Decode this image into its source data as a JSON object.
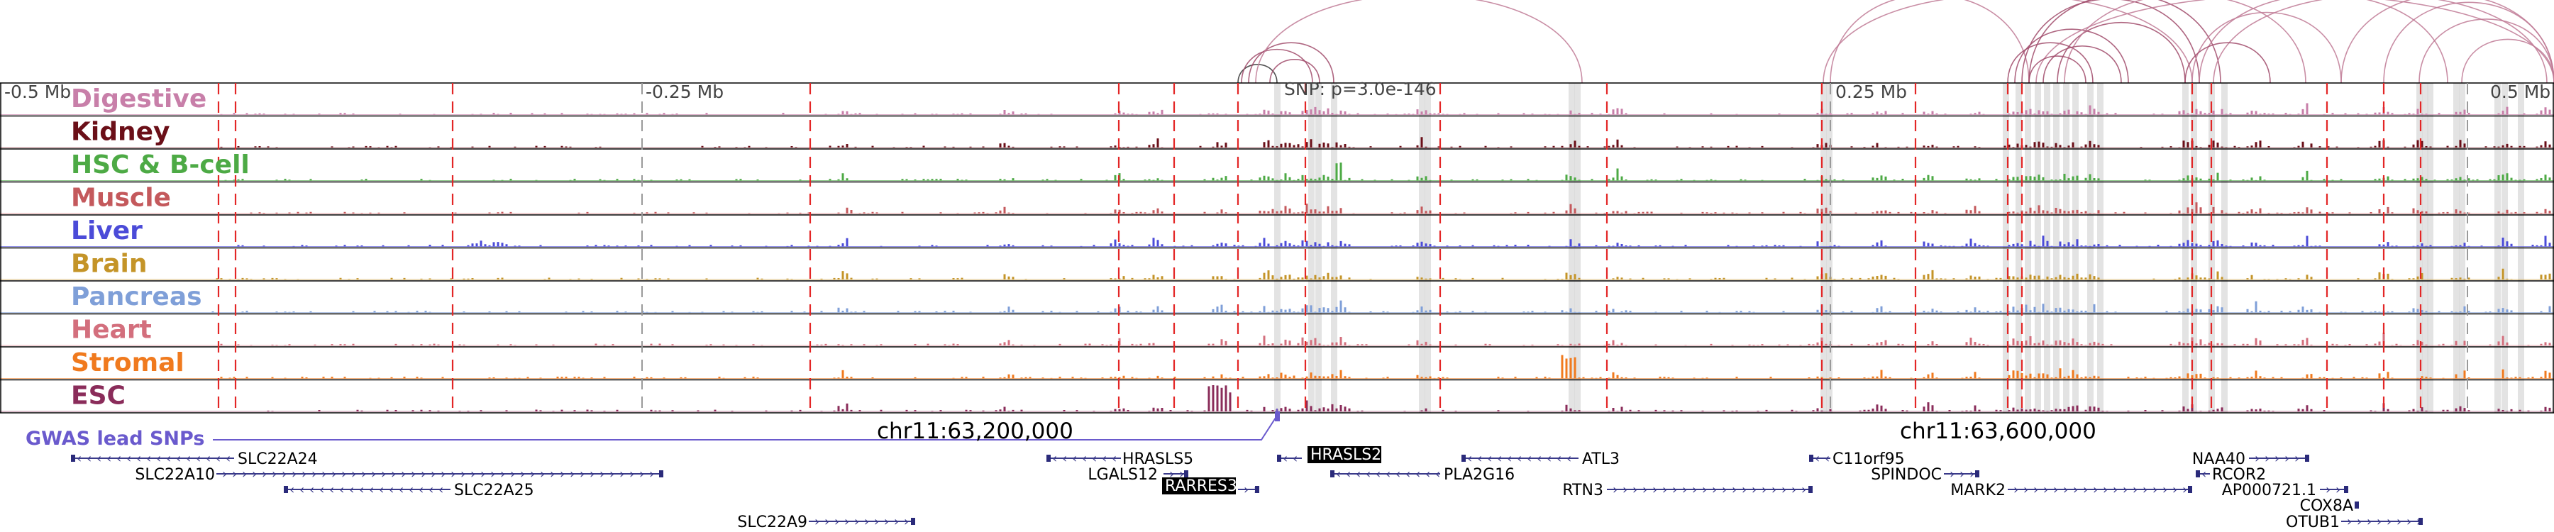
{
  "scale_bar": {
    "left_label": "-0.5 Mb",
    "mid_left_label": "-0.25 Mb",
    "mid_right_label": "0.25 Mb",
    "right_label": "0.5 Mb"
  },
  "snp_label": "SNP: p=3.0e-146",
  "gwas_label": "GWAS lead SNPs",
  "gwas_color": "#6a5acd",
  "coordinates": [
    "chr11:63,200,000",
    "chr11:63,600,000"
  ],
  "tracks": [
    {
      "name": "Digestive",
      "color": "#c87fa9"
    },
    {
      "name": "Kidney",
      "color": "#6b0f18"
    },
    {
      "name": "HSC & B-cell",
      "color": "#4daa45"
    },
    {
      "name": "Muscle",
      "color": "#c4595c"
    },
    {
      "name": "Liver",
      "color": "#4b4bd8"
    },
    {
      "name": "Brain",
      "color": "#c49428"
    },
    {
      "name": "Pancreas",
      "color": "#7f9fd8"
    },
    {
      "name": "Heart",
      "color": "#d36f7d"
    },
    {
      "name": "Stromal",
      "color": "#f07a1e"
    },
    {
      "name": "ESC",
      "color": "#8a2c5a"
    }
  ],
  "genes": [
    {
      "name": "SLC22A24",
      "highlight": false
    },
    {
      "name": "SLC22A10",
      "highlight": false
    },
    {
      "name": "SLC22A25",
      "highlight": false
    },
    {
      "name": "SLC22A9",
      "highlight": false
    },
    {
      "name": "HRASLS5",
      "highlight": false
    },
    {
      "name": "LGALS12",
      "highlight": false
    },
    {
      "name": "RARRES3",
      "highlight": true
    },
    {
      "name": "HRASLS2",
      "highlight": true
    },
    {
      "name": "PLA2G16",
      "highlight": false
    },
    {
      "name": "ATL3",
      "highlight": false
    },
    {
      "name": "RTN3",
      "highlight": false
    },
    {
      "name": "C11orf95",
      "highlight": false
    },
    {
      "name": "SPINDOC",
      "highlight": false
    },
    {
      "name": "MARK2",
      "highlight": false
    },
    {
      "name": "NAA40",
      "highlight": false
    },
    {
      "name": "RCOR2",
      "highlight": false
    },
    {
      "name": "AP000721.1",
      "highlight": false
    },
    {
      "name": "COX8A",
      "highlight": false
    },
    {
      "name": "OTUB1",
      "highlight": false
    }
  ]
}
